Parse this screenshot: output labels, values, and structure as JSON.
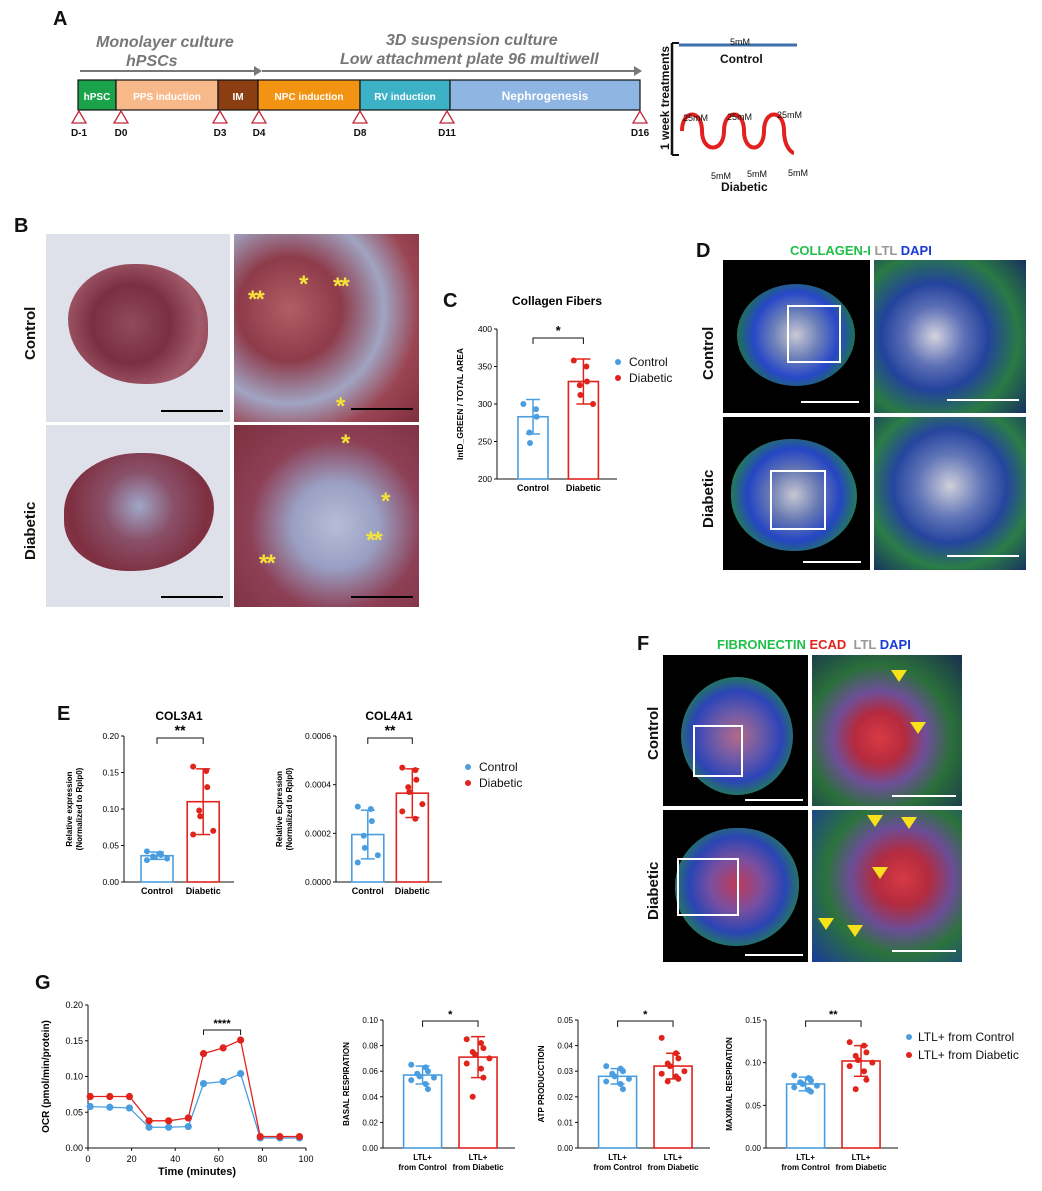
{
  "panels": {
    "A": "A",
    "B": "B",
    "C": "C",
    "D": "D",
    "E": "E",
    "F": "F",
    "G": "G"
  },
  "timeline": {
    "header_left_1": "Monolayer culture",
    "header_left_2": "hPSCs",
    "header_right_1": "3D suspension culture",
    "header_right_2": "Low attachment plate 96 multiwell",
    "segments": [
      {
        "label": "hPSC",
        "color": "#1aa34a"
      },
      {
        "label": "PPS induction",
        "color": "#f7b98a"
      },
      {
        "label": "IM",
        "color": "#8b3e12"
      },
      {
        "label": "NPC induction",
        "color": "#f39312"
      },
      {
        "label": "RV induction",
        "color": "#3db2c6"
      },
      {
        "label": "Nephrogenesis",
        "color": "#8fb6e3"
      }
    ],
    "days": [
      "D-1",
      "D0",
      "D3",
      "D4",
      "D8",
      "D11",
      "D16"
    ]
  },
  "treatment": {
    "axis_label": "1 week treatments",
    "control_conc": "5mM",
    "control_label": "Control",
    "high": "25mM",
    "low": "5mM",
    "diabetic_label": "Diabetic"
  },
  "conditions": {
    "control": "Control",
    "diabetic": "Diabetic"
  },
  "panelD_title": {
    "a": "COLLAGEN-I",
    "b": " LTL ",
    "c": "DAPI"
  },
  "panelF_title": {
    "a": "FIBRONECTIN",
    "b": " ECAD ",
    "c": " LTL ",
    "d": "DAPI"
  },
  "legendCE": {
    "control": "Control",
    "diabetic": "Diabetic"
  },
  "legendG": {
    "control": "LTL+ from Control",
    "diabetic": "LTL+ from Diabetic"
  },
  "colors": {
    "control": "#4a9ee0",
    "diabetic": "#e0241c"
  },
  "chart_data": [
    {
      "id": "C",
      "type": "bar",
      "title": "Collagen Fibers",
      "ylabel": "IntD_GREEN / TOTAL AREA",
      "ylim": [
        200,
        400
      ],
      "yticks": [
        "200",
        "250",
        "300",
        "350",
        "400"
      ],
      "categories": [
        "Control",
        "Diabetic"
      ],
      "values": [
        283,
        330
      ],
      "errors": [
        23,
        30
      ],
      "points": [
        [
          300,
          293,
          283,
          262,
          248
        ],
        [
          358,
          350,
          330,
          325,
          312,
          300
        ]
      ],
      "significance": "*"
    },
    {
      "id": "E1",
      "type": "bar",
      "title": "COL3A1",
      "ylabel": "Relative expression (Normalized to Rplp0)",
      "ylim": [
        0,
        0.2
      ],
      "yticks": [
        "0.00",
        "0.05",
        "0.10",
        "0.15",
        "0.20"
      ],
      "categories": [
        "Control",
        "Diabetic"
      ],
      "values": [
        0.036,
        0.11
      ],
      "errors": [
        0.005,
        0.045
      ],
      "points": [
        [
          0.042,
          0.039,
          0.037,
          0.035,
          0.034,
          0.032,
          0.03
        ],
        [
          0.158,
          0.152,
          0.13,
          0.098,
          0.09,
          0.07,
          0.065
        ]
      ],
      "significance": "**"
    },
    {
      "id": "E2",
      "type": "bar",
      "title": "COL4A1",
      "ylabel": "Relative Expression (Normalized to Rplp0)",
      "ylim": [
        0,
        0.0006
      ],
      "yticks": [
        "0.0000",
        "0.0002",
        "0.0004",
        "0.0006"
      ],
      "categories": [
        "Control",
        "Diabetic"
      ],
      "values": [
        0.000195,
        0.000365
      ],
      "errors": [
        0.0001,
        0.0001
      ],
      "points": [
        [
          0.00031,
          0.0003,
          0.00025,
          0.00019,
          0.00014,
          0.00011,
          8e-05
        ],
        [
          0.00047,
          0.00046,
          0.00042,
          0.00039,
          0.00037,
          0.00032,
          0.00029,
          0.00026
        ]
      ],
      "significance": "**"
    },
    {
      "id": "G1",
      "type": "line",
      "title": "",
      "xlabel": "Time (minutes)",
      "ylabel": "OCR (pmol/min/protein)",
      "xlim": [
        0,
        100
      ],
      "ylim": [
        0,
        0.2
      ],
      "xticks": [
        "0",
        "20",
        "40",
        "60",
        "80",
        "100"
      ],
      "yticks": [
        "0.00",
        "0.05",
        "0.10",
        "0.15",
        "0.20"
      ],
      "x": [
        1,
        10,
        19,
        28,
        37,
        46,
        53,
        62,
        70,
        79,
        88,
        97
      ],
      "series": [
        {
          "name": "LTL+ from Control",
          "values": [
            0.058,
            0.057,
            0.056,
            0.029,
            0.029,
            0.03,
            0.09,
            0.093,
            0.104,
            0.014,
            0.014,
            0.014
          ]
        },
        {
          "name": "LTL+ from Diabetic",
          "values": [
            0.072,
            0.072,
            0.072,
            0.038,
            0.038,
            0.042,
            0.132,
            0.14,
            0.151,
            0.016,
            0.016,
            0.016
          ]
        }
      ],
      "significance": "****"
    },
    {
      "id": "G2",
      "type": "bar",
      "title": "",
      "ylabel": "BASAL RESPIRATION",
      "ylim": [
        0,
        0.1
      ],
      "yticks": [
        "0.00",
        "0.02",
        "0.04",
        "0.06",
        "0.08",
        "0.10"
      ],
      "categories": [
        "LTL+ from Control",
        "LTL+ from Diabetic"
      ],
      "values": [
        0.057,
        0.071
      ],
      "errors": [
        0.007,
        0.016
      ],
      "points": [
        [
          0.065,
          0.063,
          0.06,
          0.058,
          0.056,
          0.055,
          0.053,
          0.05,
          0.046
        ],
        [
          0.085,
          0.082,
          0.078,
          0.075,
          0.073,
          0.07,
          0.066,
          0.062,
          0.055,
          0.04
        ]
      ],
      "significance": "*"
    },
    {
      "id": "G3",
      "type": "bar",
      "title": "",
      "ylabel": "ATP PRODUCCTION",
      "ylim": [
        0,
        0.05
      ],
      "yticks": [
        "0.00",
        "0.01",
        "0.02",
        "0.03",
        "0.04",
        "0.05"
      ],
      "categories": [
        "LTL+ from Control",
        "LTL+ from Diabetic"
      ],
      "values": [
        0.028,
        0.032
      ],
      "errors": [
        0.003,
        0.005
      ],
      "points": [
        [
          0.032,
          0.031,
          0.03,
          0.029,
          0.028,
          0.027,
          0.026,
          0.025,
          0.023
        ],
        [
          0.043,
          0.037,
          0.035,
          0.033,
          0.032,
          0.03,
          0.029,
          0.028,
          0.027,
          0.026
        ]
      ],
      "significance": "*"
    },
    {
      "id": "G4",
      "type": "bar",
      "title": "",
      "ylabel": "MAXIMAL RESPIRATION",
      "ylim": [
        0,
        0.15
      ],
      "yticks": [
        "0.00",
        "0.05",
        "0.10",
        "0.15"
      ],
      "categories": [
        "LTL+ from Control",
        "LTL+ from Diabetic"
      ],
      "values": [
        0.075,
        0.102
      ],
      "errors": [
        0.008,
        0.018
      ],
      "points": [
        [
          0.085,
          0.082,
          0.079,
          0.077,
          0.075,
          0.073,
          0.071,
          0.068,
          0.066
        ],
        [
          0.124,
          0.12,
          0.112,
          0.108,
          0.103,
          0.1,
          0.096,
          0.09,
          0.08,
          0.069
        ]
      ],
      "significance": "**"
    }
  ]
}
